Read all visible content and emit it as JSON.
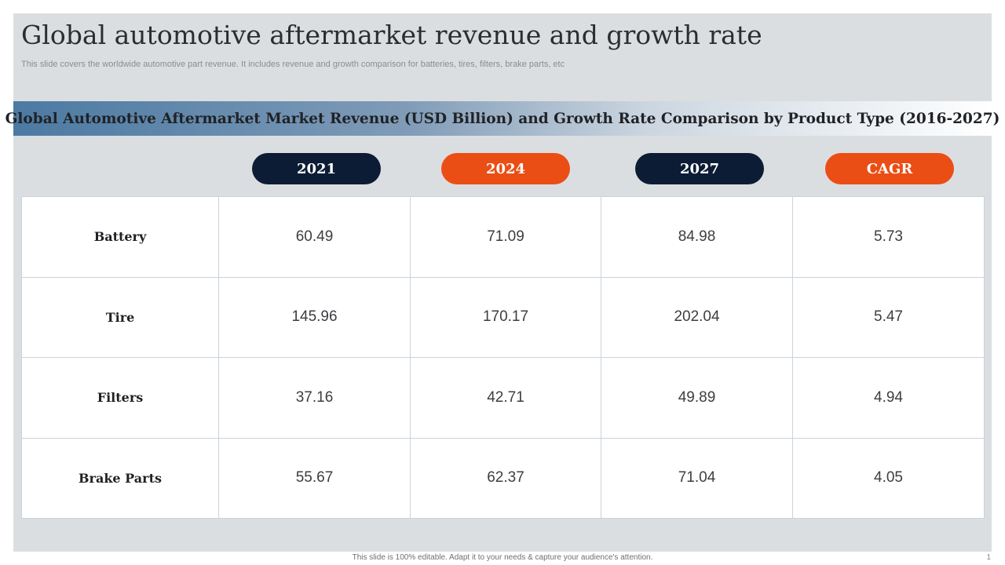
{
  "slide": {
    "title": "Global automotive aftermarket revenue and growth rate",
    "subtitle": "This slide covers the worldwide automotive part revenue. It includes revenue and growth comparison for batteries, tires, filters, brake parts, etc",
    "banner": "Global Automotive Aftermarket Market Revenue (USD Billion) and Growth Rate Comparison by Product Type (2016-2027)",
    "footer": "This slide is 100% editable. Adapt it to your needs & capture your audience's attention.",
    "page_number": "1"
  },
  "colors": {
    "navy": "#0c1c35",
    "orange": "#ea4e14"
  },
  "table": {
    "columns": [
      {
        "label": "2021",
        "color": "navy"
      },
      {
        "label": "2024",
        "color": "orange"
      },
      {
        "label": "2027",
        "color": "navy"
      },
      {
        "label": "CAGR",
        "color": "orange"
      }
    ],
    "rows": [
      {
        "label": "Battery",
        "values": [
          "60.49",
          "71.09",
          "84.98",
          "5.73"
        ]
      },
      {
        "label": "Tire",
        "values": [
          "145.96",
          "170.17",
          "202.04",
          "5.47"
        ]
      },
      {
        "label": "Filters",
        "values": [
          "37.16",
          "42.71",
          "49.89",
          "4.94"
        ]
      },
      {
        "label": "Brake Parts",
        "values": [
          "55.67",
          "62.37",
          "71.04",
          "4.05"
        ]
      }
    ]
  }
}
